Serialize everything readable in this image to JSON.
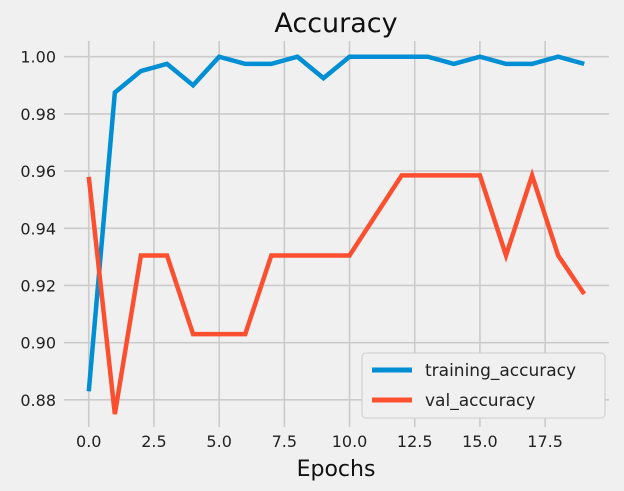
{
  "chart_data": {
    "type": "line",
    "title": "Accuracy",
    "xlabel": "Epochs",
    "ylabel": "",
    "xlim": [
      -0.95,
      19.95
    ],
    "ylim": [
      0.8705,
      1.0055
    ],
    "x_ticks": [
      0,
      2.5,
      5,
      7.5,
      10,
      12.5,
      15,
      17.5
    ],
    "x_tick_labels": [
      "0.0",
      "2.5",
      "5.0",
      "7.5",
      "10.0",
      "12.5",
      "15.0",
      "17.5"
    ],
    "y_ticks": [
      0.88,
      0.9,
      0.92,
      0.94,
      0.96,
      0.98,
      1.0
    ],
    "y_tick_labels": [
      "0.88",
      "0.90",
      "0.92",
      "0.94",
      "0.96",
      "0.98",
      "1.00"
    ],
    "grid": true,
    "legend_position": "bottom-right",
    "x": [
      0,
      1,
      2,
      3,
      4,
      5,
      6,
      7,
      8,
      9,
      10,
      11,
      12,
      13,
      14,
      15,
      16,
      17,
      18,
      19
    ],
    "series": [
      {
        "name": "training_accuracy",
        "color": "#008fd5",
        "values": [
          0.883,
          0.9875,
          0.995,
          0.9975,
          0.99,
          1.0,
          0.9975,
          0.9975,
          1.0,
          0.9925,
          1.0,
          1.0,
          1.0,
          1.0,
          0.9975,
          1.0,
          0.9975,
          0.9975,
          1.0,
          0.9975
        ]
      },
      {
        "name": "val_accuracy",
        "color": "#fc4f30",
        "values": [
          0.958,
          0.875,
          0.9305,
          0.9305,
          0.903,
          0.903,
          0.903,
          0.9305,
          0.9305,
          0.9305,
          0.9305,
          0.9445,
          0.9585,
          0.9585,
          0.9585,
          0.9585,
          0.9305,
          0.9585,
          0.9305,
          0.917
        ]
      }
    ]
  }
}
